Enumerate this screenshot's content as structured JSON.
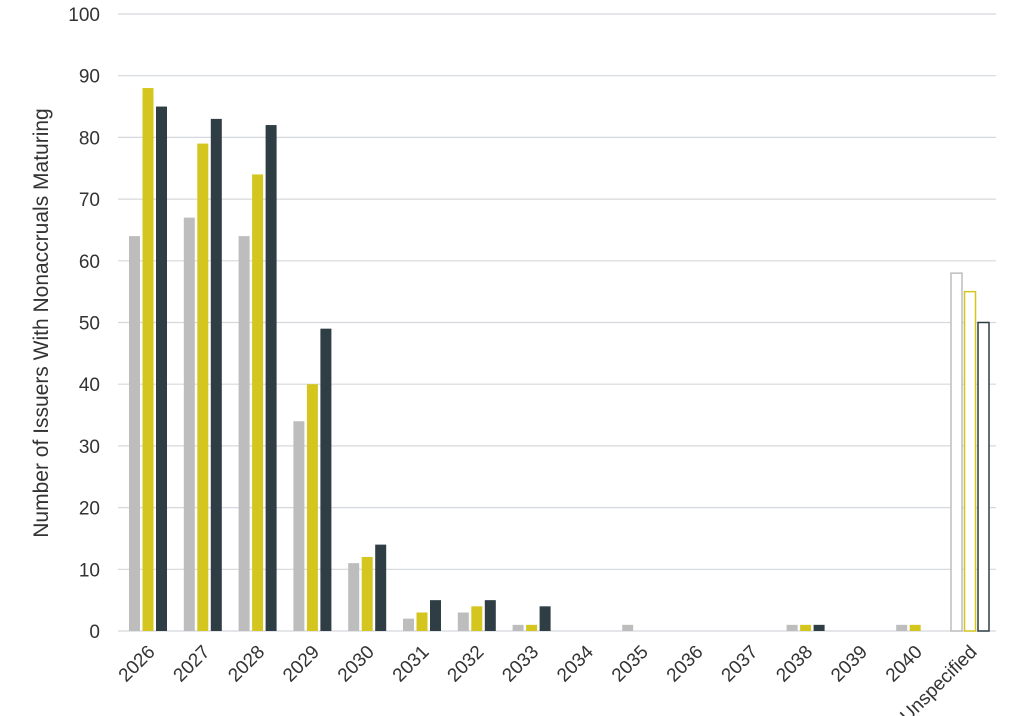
{
  "chart_data": {
    "type": "bar",
    "title": "",
    "xlabel": "",
    "ylabel": "Number of Issuers With Nonaccruals Maturing",
    "ylim": [
      0,
      100
    ],
    "yticks": [
      0,
      10,
      20,
      30,
      40,
      50,
      60,
      70,
      80,
      90,
      100
    ],
    "grid": true,
    "legend": "none",
    "categories": [
      "2026",
      "2027",
      "2028",
      "2029",
      "2030",
      "2031",
      "2032",
      "2033",
      "2034",
      "2035",
      "2036",
      "2037",
      "2038",
      "2039",
      "2040",
      "Unspecified"
    ],
    "series": [
      {
        "color": "#bdbdbd",
        "values": [
          64,
          67,
          64,
          34,
          11,
          2,
          3,
          1,
          0,
          1,
          0,
          0,
          1,
          0,
          1,
          58
        ]
      },
      {
        "color": "#d4c61f",
        "values": [
          88,
          79,
          74,
          40,
          12,
          3,
          4,
          1,
          0,
          0,
          0,
          0,
          1,
          0,
          1,
          55
        ]
      },
      {
        "color": "#2f3d45",
        "values": [
          85,
          83,
          82,
          49,
          14,
          5,
          5,
          4,
          0,
          0,
          0,
          0,
          1,
          0,
          0,
          50
        ]
      }
    ]
  }
}
